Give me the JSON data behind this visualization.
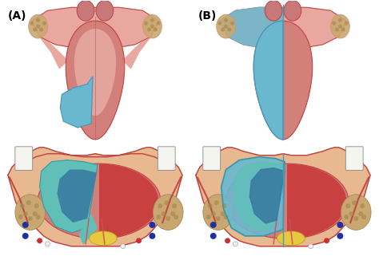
{
  "label_A": "(A)",
  "label_B": "(B)",
  "background_color": "#ffffff",
  "label_fontsize": 10,
  "label_color": "#000000",
  "figsize": [
    4.74,
    3.26
  ],
  "dpi": 100,
  "colors": {
    "tongue_pink": "#d4807a",
    "tongue_mid": "#cc7070",
    "tongue_light": "#e8a8a0",
    "tongue_pale": "#f0c8c0",
    "blue_resection": "#6ab8d0",
    "blue_deep": "#4898b8",
    "teal_outer": "#60c0b8",
    "teal_inner": "#3898a0",
    "dark_blue_inner": "#3878a0",
    "red_muscle": "#c84040",
    "red_bright": "#d05050",
    "yellow": "#e8c840",
    "bone_tan": "#c8a870",
    "bone_speckle": "#a88850",
    "white_tooth": "#f5f5f0",
    "skin_peach": "#e8b890",
    "skin_outer": "#d09870",
    "red_border": "#c04040",
    "pink_base": "#d08080",
    "tonsil_pink": "#c07878",
    "uvula_pink": "#c87878",
    "palate_pink": "#d49090",
    "navy": "#2030a0",
    "red_dot": "#cc3030",
    "white_dot": "#f0f0f0"
  }
}
